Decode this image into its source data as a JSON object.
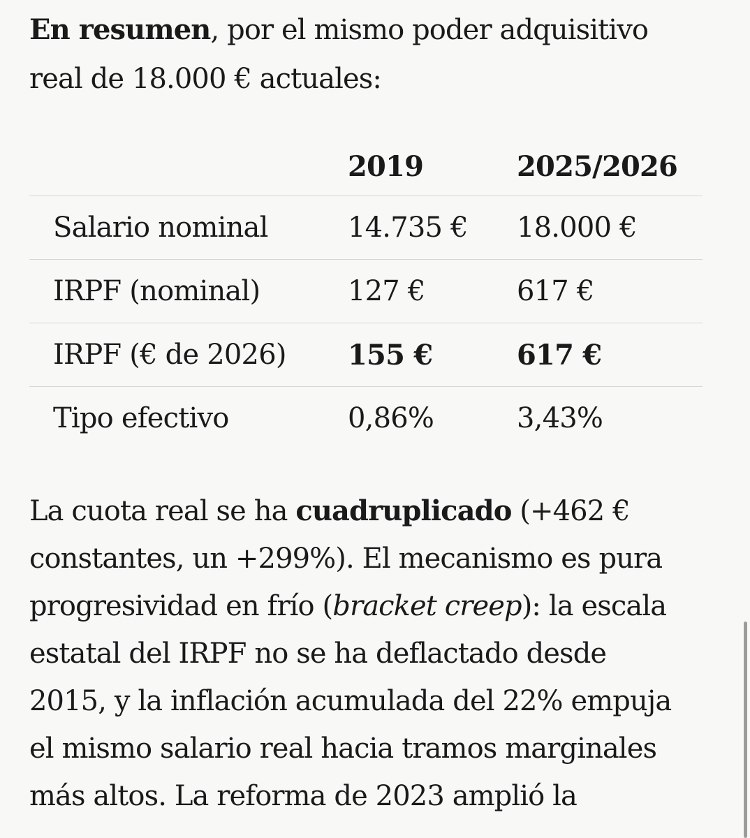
{
  "intro": {
    "lead": "En resumen",
    "line1_rest": ", por el mismo poder adquisitivo",
    "line2": "real de 18.000 € actuales:"
  },
  "table": {
    "headers": [
      "",
      "2019",
      "2025/2026"
    ],
    "rows": [
      {
        "label": "Salario nominal",
        "v2019": "14.735 €",
        "v2026": "18.000 €",
        "bold": false
      },
      {
        "label": "IRPF (nominal)",
        "v2019": "127 €",
        "v2026": "617 €",
        "bold": false
      },
      {
        "label": "IRPF (€ de 2026)",
        "v2019": "155 €",
        "v2026": "617 €",
        "bold": true
      },
      {
        "label": "Tipo efectivo",
        "v2019": "0,86%",
        "v2026": "3,43%",
        "bold": false
      }
    ]
  },
  "body": {
    "l1_a": "La cuota real se ha ",
    "l1_b": "cuadruplicado",
    "l1_c": " (+462 €",
    "l2": "constantes, un +299%). El mecanismo es pura",
    "l3_a": "progresividad en frío (",
    "l3_b": "bracket creep",
    "l3_c": "): la escala",
    "l4": "estatal del IRPF no se ha deflactado desde",
    "l5": "2015, y la inflación acumulada del 22% empuja",
    "l6": "el mismo salario real hacia tramos marginales",
    "l7": "más altos. La reforma de 2023 amplió la"
  }
}
